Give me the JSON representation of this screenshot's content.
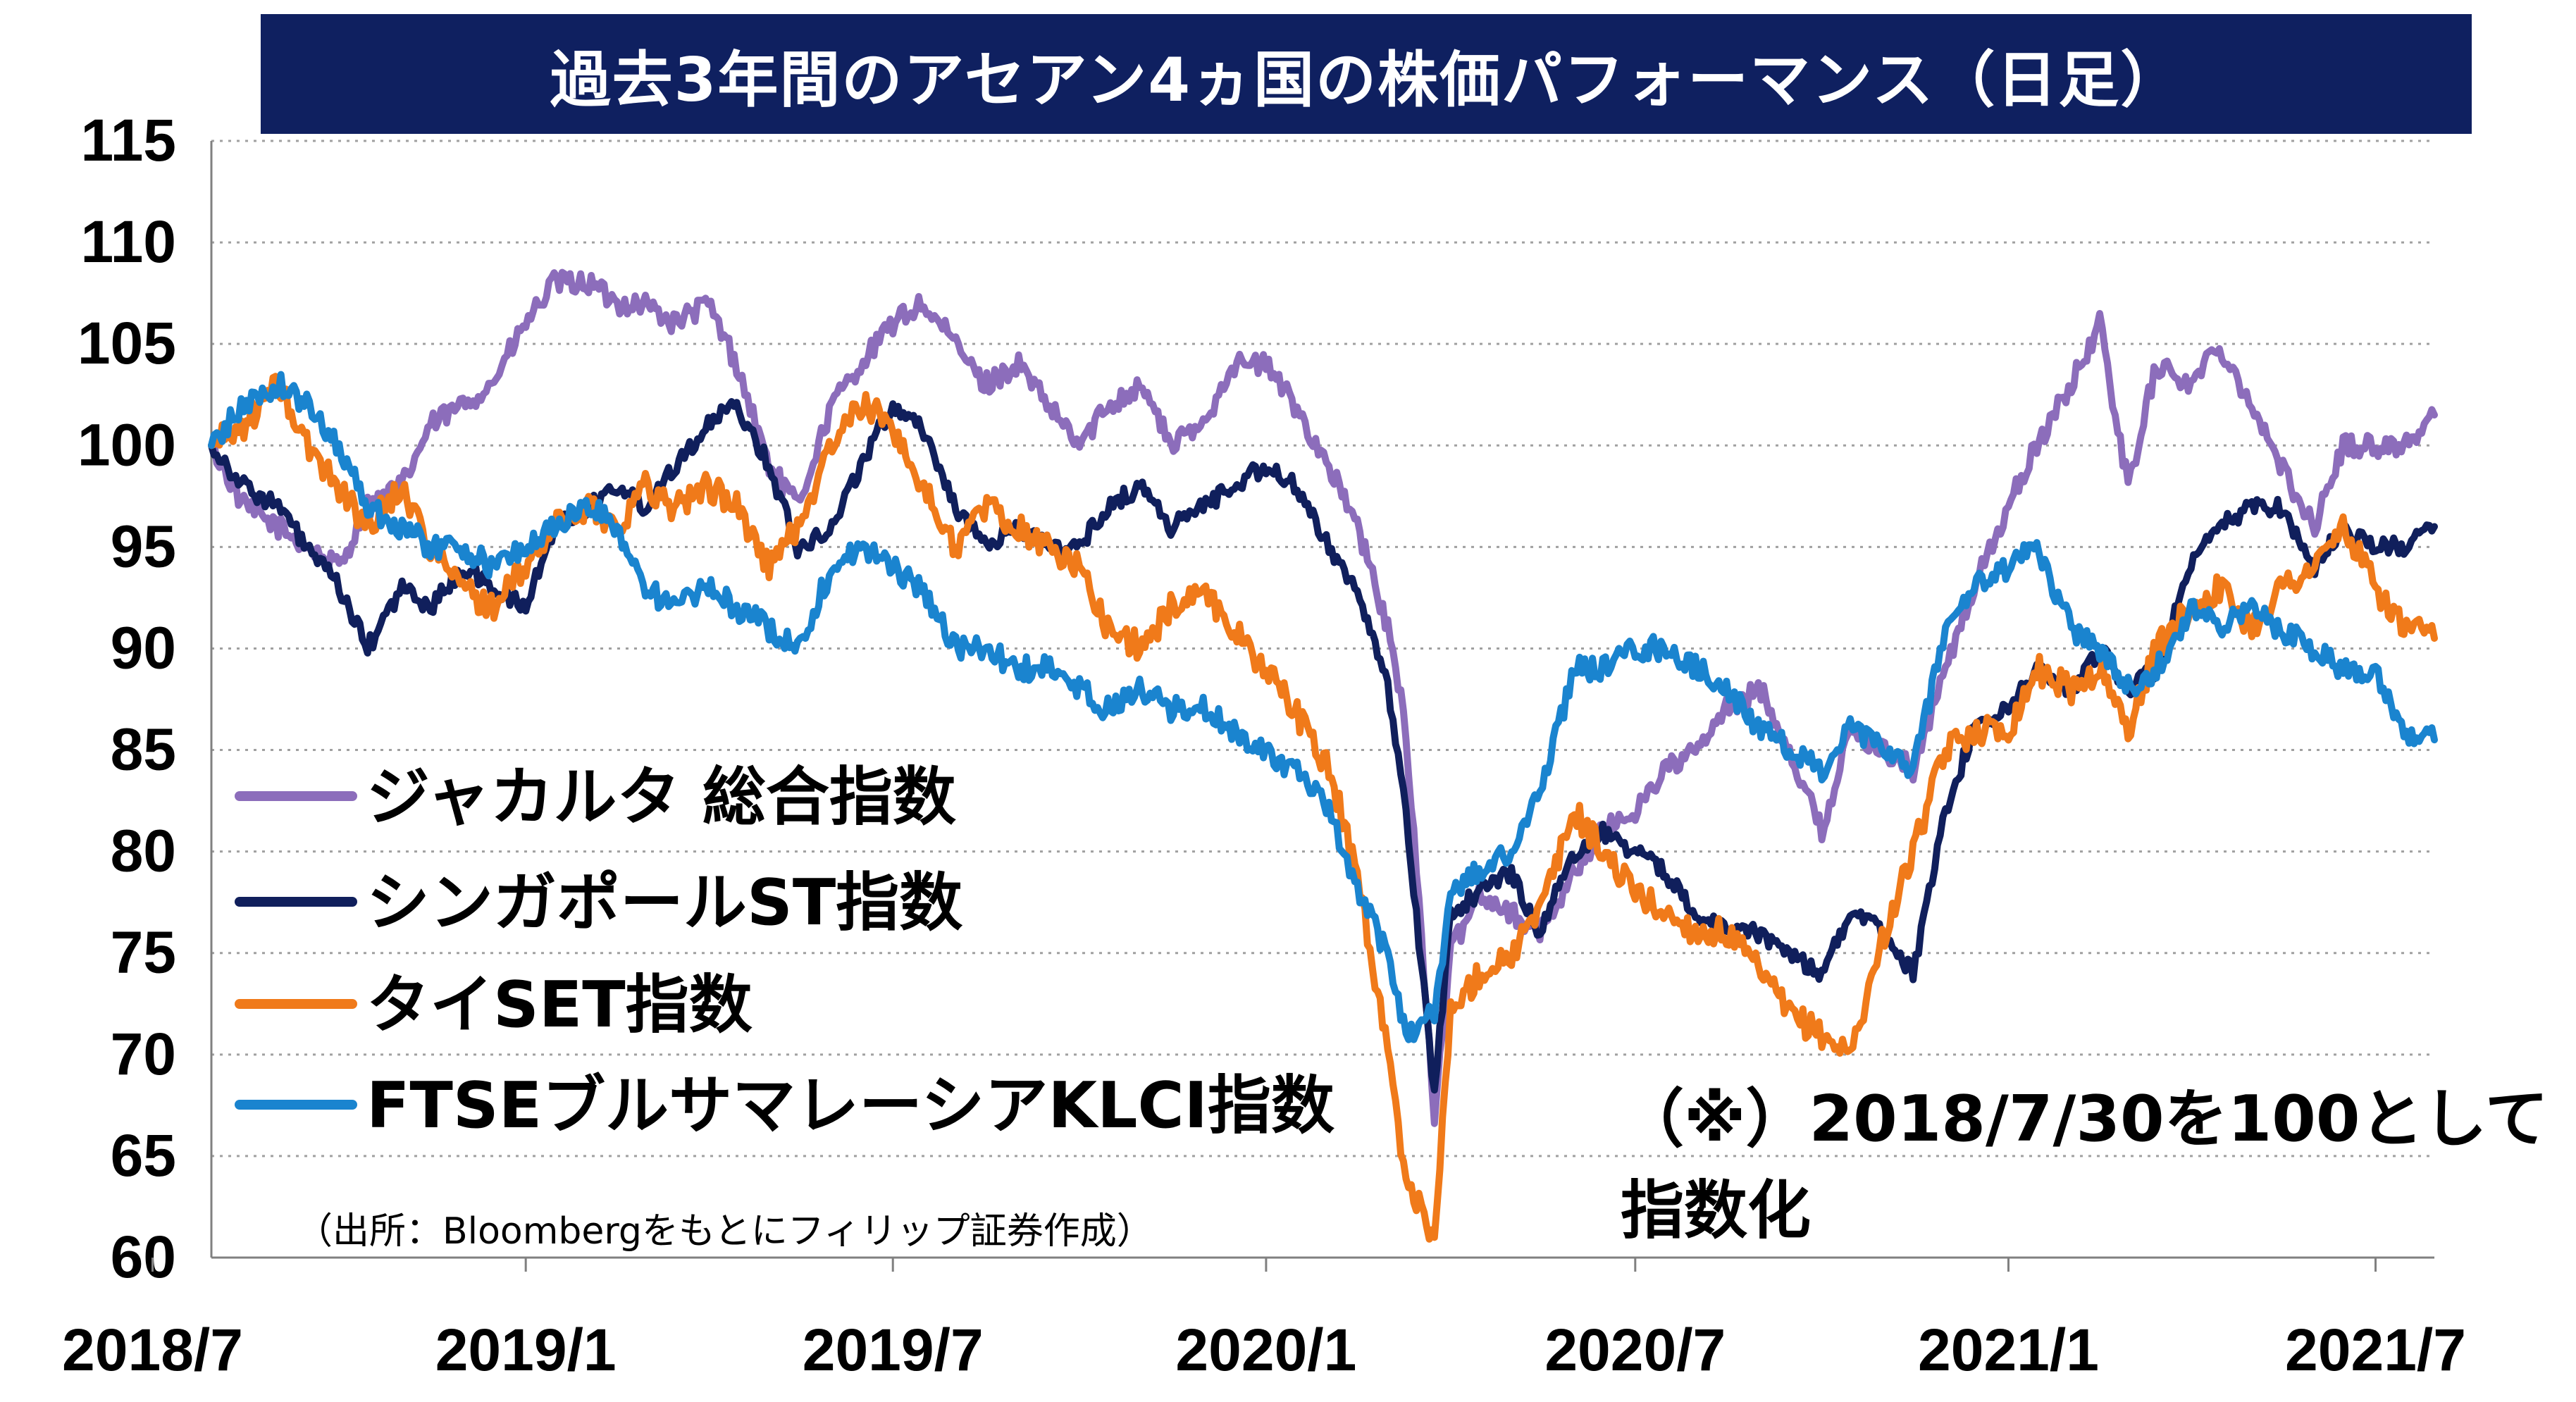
{
  "title": "過去3年間のアセアン4ヵ国の株価パフォーマンス（日足）",
  "source": "（出所：Bloombergをもとにフィリップ証券作成）",
  "note_line1": "（※）2018/7/30を100として",
  "note_line2": "指数化",
  "chart_data": {
    "type": "line",
    "x_ticks": [
      "2018/7",
      "2019/1",
      "2019/7",
      "2020/1",
      "2020/7",
      "2021/1",
      "2021/7"
    ],
    "xlim": [
      "2018/7/30",
      "2021/7/30"
    ],
    "ylim": [
      60,
      115
    ],
    "y_ticks": [
      60,
      65,
      70,
      75,
      80,
      85,
      90,
      95,
      100,
      105,
      110,
      115
    ],
    "grid": true,
    "legend_position": "left-middle",
    "series": [
      {
        "name": "ジャカルタ 総合指数",
        "color": "#8c6dbb",
        "x": [
          "2018/7/30",
          "2018/8/15",
          "2018/9/1",
          "2018/9/15",
          "2018/10/1",
          "2018/10/15",
          "2018/11/1",
          "2018/11/15",
          "2018/12/1",
          "2018/12/15",
          "2019/1/1",
          "2019/1/15",
          "2019/2/1",
          "2019/2/15",
          "2019/3/1",
          "2019/3/15",
          "2019/4/1",
          "2019/4/15",
          "2019/5/1",
          "2019/5/15",
          "2019/6/1",
          "2019/6/15",
          "2019/7/1",
          "2019/7/15",
          "2019/8/1",
          "2019/8/15",
          "2019/9/1",
          "2019/9/15",
          "2019/10/1",
          "2019/10/15",
          "2019/11/1",
          "2019/11/15",
          "2019/12/1",
          "2019/12/15",
          "2020/1/1",
          "2020/1/15",
          "2020/2/1",
          "2020/2/15",
          "2020/3/1",
          "2020/3/10",
          "2020/3/24",
          "2020/4/1",
          "2020/4/15",
          "2020/5/1",
          "2020/5/15",
          "2020/6/1",
          "2020/6/15",
          "2020/7/1",
          "2020/7/15",
          "2020/8/1",
          "2020/8/15",
          "2020/9/1",
          "2020/9/15",
          "2020/10/1",
          "2020/10/15",
          "2020/11/1",
          "2020/11/15",
          "2020/12/1",
          "2020/12/15",
          "2021/1/1",
          "2021/1/15",
          "2021/2/1",
          "2021/2/15",
          "2021/3/1",
          "2021/3/15",
          "2021/4/1",
          "2021/4/15",
          "2021/5/1",
          "2021/5/15",
          "2021/6/1",
          "2021/6/15",
          "2021/7/1",
          "2021/7/15",
          "2021/7/30"
        ],
        "values": [
          100,
          97,
          96,
          95,
          94,
          97,
          98,
          101,
          102,
          103,
          106,
          108,
          108,
          107,
          107,
          106,
          107,
          104,
          99,
          97,
          102,
          104,
          106,
          107,
          105,
          103,
          104,
          102,
          100,
          102,
          103,
          100,
          101,
          104,
          104,
          102,
          99,
          96,
          91,
          86,
          67,
          75,
          78,
          77,
          76,
          79,
          81,
          82,
          84,
          85,
          87,
          88,
          85,
          81,
          86,
          85,
          84,
          89,
          93,
          97,
          100,
          103,
          106,
          98,
          104,
          103,
          105,
          102,
          99,
          96,
          100,
          100,
          100,
          101.5
        ]
      },
      {
        "name": "シンガポールST指数",
        "color": "#101f5c",
        "x": [
          "2018/7/30",
          "2018/8/15",
          "2018/9/1",
          "2018/9/15",
          "2018/10/1",
          "2018/10/15",
          "2018/11/1",
          "2018/11/15",
          "2018/12/1",
          "2018/12/15",
          "2019/1/1",
          "2019/1/15",
          "2019/2/1",
          "2019/2/15",
          "2019/3/1",
          "2019/3/15",
          "2019/4/1",
          "2019/4/15",
          "2019/5/1",
          "2019/5/15",
          "2019/6/1",
          "2019/6/15",
          "2019/7/1",
          "2019/7/15",
          "2019/8/1",
          "2019/8/15",
          "2019/9/1",
          "2019/9/15",
          "2019/10/1",
          "2019/10/15",
          "2019/11/1",
          "2019/11/15",
          "2019/12/1",
          "2019/12/15",
          "2020/1/1",
          "2020/1/15",
          "2020/2/1",
          "2020/2/15",
          "2020/3/1",
          "2020/3/10",
          "2020/3/24",
          "2020/4/1",
          "2020/4/15",
          "2020/5/1",
          "2020/5/15",
          "2020/6/1",
          "2020/6/15",
          "2020/7/1",
          "2020/7/15",
          "2020/8/1",
          "2020/8/15",
          "2020/9/1",
          "2020/9/15",
          "2020/10/1",
          "2020/10/15",
          "2020/11/1",
          "2020/11/15",
          "2020/12/1",
          "2020/12/15",
          "2021/1/1",
          "2021/1/15",
          "2021/2/1",
          "2021/2/15",
          "2021/3/1",
          "2021/3/15",
          "2021/4/1",
          "2021/4/15",
          "2021/5/1",
          "2021/5/15",
          "2021/6/1",
          "2021/6/15",
          "2021/7/1",
          "2021/7/15",
          "2021/7/30"
        ],
        "values": [
          100,
          98,
          97,
          95,
          93,
          90,
          93,
          92,
          94,
          93,
          92,
          96,
          97,
          98,
          97,
          99,
          101,
          102,
          99,
          95,
          96,
          99,
          102,
          101,
          97,
          95,
          96,
          95,
          95,
          97,
          98,
          96,
          97,
          98,
          99,
          98,
          95,
          93,
          88,
          82,
          68,
          77,
          78,
          79,
          76,
          80,
          81,
          80,
          79,
          77,
          76,
          76,
          75,
          74,
          77,
          76,
          74,
          82,
          86,
          87,
          89,
          88,
          90,
          88,
          89,
          94,
          96,
          97,
          97,
          94,
          96,
          95,
          95,
          96
        ]
      },
      {
        "name": "タイSET指数",
        "color": "#f07a1a",
        "x": [
          "2018/7/30",
          "2018/8/15",
          "2018/9/1",
          "2018/9/15",
          "2018/10/1",
          "2018/10/15",
          "2018/11/1",
          "2018/11/15",
          "2018/12/1",
          "2018/12/15",
          "2019/1/1",
          "2019/1/15",
          "2019/2/1",
          "2019/2/15",
          "2019/3/1",
          "2019/3/15",
          "2019/4/1",
          "2019/4/15",
          "2019/5/1",
          "2019/5/15",
          "2019/6/1",
          "2019/6/15",
          "2019/7/1",
          "2019/7/15",
          "2019/8/1",
          "2019/8/15",
          "2019/9/1",
          "2019/9/15",
          "2019/10/1",
          "2019/10/15",
          "2019/11/1",
          "2019/11/15",
          "2019/12/1",
          "2019/12/15",
          "2020/1/1",
          "2020/1/15",
          "2020/2/1",
          "2020/2/15",
          "2020/3/1",
          "2020/3/10",
          "2020/3/24",
          "2020/4/1",
          "2020/4/15",
          "2020/5/1",
          "2020/5/15",
          "2020/6/1",
          "2020/6/15",
          "2020/7/1",
          "2020/7/15",
          "2020/8/1",
          "2020/8/15",
          "2020/9/1",
          "2020/9/15",
          "2020/10/1",
          "2020/10/15",
          "2020/11/1",
          "2020/11/15",
          "2020/12/1",
          "2020/12/15",
          "2021/1/1",
          "2021/1/15",
          "2021/2/1",
          "2021/2/15",
          "2021/3/1",
          "2021/3/15",
          "2021/4/1",
          "2021/4/15",
          "2021/5/1",
          "2021/5/15",
          "2021/6/1",
          "2021/6/15",
          "2021/7/1",
          "2021/7/15",
          "2021/7/30"
        ],
        "values": [
          100,
          101,
          103,
          100,
          98,
          96,
          98,
          95,
          93,
          92,
          94,
          96,
          97,
          96,
          98,
          97,
          98,
          97,
          94,
          96,
          100,
          102,
          101,
          98,
          95,
          97,
          96,
          95,
          94,
          91,
          90,
          92,
          93,
          91,
          89,
          87,
          84,
          79,
          70,
          64,
          61,
          72,
          74,
          75,
          77,
          82,
          80,
          78,
          77,
          76,
          76,
          74,
          72,
          71,
          70,
          76,
          80,
          85,
          86,
          86,
          89,
          88,
          89,
          86,
          90,
          92,
          93,
          91,
          93,
          94,
          96,
          93,
          91,
          90.5
        ]
      },
      {
        "name": "FTSEブルサマレーシアKLCI指数",
        "color": "#1a84cf",
        "x": [
          "2018/7/30",
          "2018/8/15",
          "2018/9/1",
          "2018/9/15",
          "2018/10/1",
          "2018/10/15",
          "2018/11/1",
          "2018/11/15",
          "2018/12/1",
          "2018/12/15",
          "2019/1/1",
          "2019/1/15",
          "2019/2/1",
          "2019/2/15",
          "2019/3/1",
          "2019/3/15",
          "2019/4/1",
          "2019/4/15",
          "2019/5/1",
          "2019/5/15",
          "2019/6/1",
          "2019/6/15",
          "2019/7/1",
          "2019/7/15",
          "2019/8/1",
          "2019/8/15",
          "2019/9/1",
          "2019/9/15",
          "2019/10/1",
          "2019/10/15",
          "2019/11/1",
          "2019/11/15",
          "2019/12/1",
          "2019/12/15",
          "2020/1/1",
          "2020/1/15",
          "2020/2/1",
          "2020/2/15",
          "2020/3/1",
          "2020/3/10",
          "2020/3/24",
          "2020/4/1",
          "2020/4/15",
          "2020/5/1",
          "2020/5/15",
          "2020/6/1",
          "2020/6/15",
          "2020/7/1",
          "2020/7/15",
          "2020/8/1",
          "2020/8/15",
          "2020/9/1",
          "2020/9/15",
          "2020/10/1",
          "2020/10/15",
          "2020/11/1",
          "2020/11/15",
          "2020/12/1",
          "2020/12/15",
          "2021/1/1",
          "2021/1/15",
          "2021/2/1",
          "2021/2/15",
          "2021/3/1",
          "2021/3/15",
          "2021/4/1",
          "2021/4/15",
          "2021/5/1",
          "2021/5/15",
          "2021/6/1",
          "2021/6/15",
          "2021/7/1",
          "2021/7/15",
          "2021/7/30"
        ],
        "values": [
          100,
          102,
          103,
          102,
          100,
          97,
          96,
          95,
          95,
          94,
          95,
          96,
          97,
          96,
          93,
          92,
          93,
          92,
          91,
          90,
          94,
          95,
          94,
          93,
          90,
          90,
          89,
          89,
          88,
          87,
          88,
          87,
          87,
          86,
          85,
          84,
          82,
          78,
          75,
          71,
          72,
          78,
          79,
          80,
          83,
          89,
          89,
          90,
          90,
          89,
          88,
          86,
          85,
          84,
          86,
          85,
          84,
          91,
          93,
          94,
          95,
          91,
          90,
          88,
          89,
          92,
          91,
          92,
          91,
          90,
          89,
          89,
          86,
          85.5
        ]
      }
    ]
  }
}
